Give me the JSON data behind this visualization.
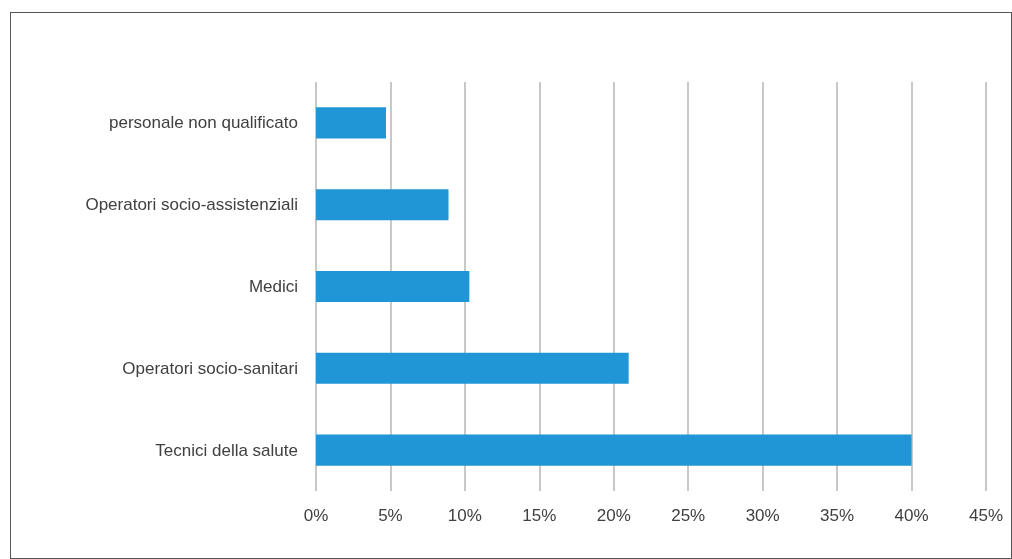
{
  "chart_data": {
    "type": "bar",
    "orientation": "horizontal",
    "categories": [
      "personale non qualificato",
      "Operatori socio-assistenziali",
      "Medici",
      "Operatori socio-sanitari",
      "Tecnici della salute"
    ],
    "values": [
      4.7,
      8.9,
      10.3,
      21.0,
      40.0
    ],
    "color": "#2196d6",
    "xlim": [
      0,
      45
    ],
    "xticks": [
      {
        "value": 0,
        "label": "0%"
      },
      {
        "value": 5,
        "label": "5%"
      },
      {
        "value": 10,
        "label": "10%"
      },
      {
        "value": 15,
        "label": "15%"
      },
      {
        "value": 20,
        "label": "20%"
      },
      {
        "value": 25,
        "label": "25%"
      },
      {
        "value": 30,
        "label": "30%"
      },
      {
        "value": 35,
        "label": "35%"
      },
      {
        "value": 40,
        "label": "40%"
      },
      {
        "value": 45,
        "label": "45%"
      }
    ],
    "grid": "x"
  }
}
